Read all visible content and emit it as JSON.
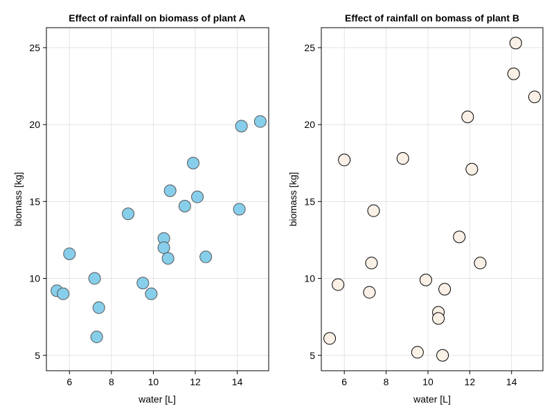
{
  "chart_data": [
    {
      "type": "scatter",
      "title": "Effect of rainfall on biomass of plant A",
      "xlabel": "water [L]",
      "ylabel": "biomass [kg]",
      "xlim": [
        4.9,
        15.5
      ],
      "ylim": [
        4.0,
        26.3
      ],
      "xticks": [
        6,
        8,
        10,
        12,
        14
      ],
      "yticks": [
        5,
        10,
        15,
        20,
        25
      ],
      "grid": true,
      "marker_color": "#87CEEB",
      "marker_edge": "#555555",
      "points": [
        {
          "x": 5.4,
          "y": 9.2
        },
        {
          "x": 5.7,
          "y": 9.0
        },
        {
          "x": 6.0,
          "y": 11.6
        },
        {
          "x": 7.2,
          "y": 10.0
        },
        {
          "x": 7.3,
          "y": 6.2
        },
        {
          "x": 7.4,
          "y": 8.1
        },
        {
          "x": 8.8,
          "y": 14.2
        },
        {
          "x": 9.5,
          "y": 9.7
        },
        {
          "x": 9.9,
          "y": 9.0
        },
        {
          "x": 10.5,
          "y": 12.6
        },
        {
          "x": 10.5,
          "y": 12.0
        },
        {
          "x": 10.7,
          "y": 11.3
        },
        {
          "x": 10.8,
          "y": 15.7
        },
        {
          "x": 11.5,
          "y": 14.7
        },
        {
          "x": 11.9,
          "y": 17.5
        },
        {
          "x": 12.1,
          "y": 15.3
        },
        {
          "x": 12.5,
          "y": 11.4
        },
        {
          "x": 14.1,
          "y": 14.5
        },
        {
          "x": 14.2,
          "y": 19.9
        },
        {
          "x": 15.1,
          "y": 20.2
        }
      ]
    },
    {
      "type": "scatter",
      "title": "Effect of rainfall on bomass of plant B",
      "xlabel": "water [L]",
      "ylabel": "biomass [kg]",
      "xlim": [
        4.9,
        15.5
      ],
      "ylim": [
        4.0,
        26.3
      ],
      "xticks": [
        6,
        8,
        10,
        12,
        14
      ],
      "yticks": [
        5,
        10,
        15,
        20,
        25
      ],
      "grid": true,
      "marker_color": "#FAF0E6",
      "marker_edge": "#000000",
      "points": [
        {
          "x": 5.3,
          "y": 6.1
        },
        {
          "x": 5.7,
          "y": 9.6
        },
        {
          "x": 6.0,
          "y": 17.7
        },
        {
          "x": 7.2,
          "y": 9.1
        },
        {
          "x": 7.3,
          "y": 11.0
        },
        {
          "x": 7.4,
          "y": 14.4
        },
        {
          "x": 8.8,
          "y": 17.8
        },
        {
          "x": 9.5,
          "y": 5.2
        },
        {
          "x": 9.9,
          "y": 9.9
        },
        {
          "x": 10.5,
          "y": 7.8
        },
        {
          "x": 10.5,
          "y": 7.4
        },
        {
          "x": 10.7,
          "y": 5.0
        },
        {
          "x": 10.8,
          "y": 9.3
        },
        {
          "x": 11.5,
          "y": 12.7
        },
        {
          "x": 11.9,
          "y": 20.5
        },
        {
          "x": 12.1,
          "y": 17.1
        },
        {
          "x": 12.5,
          "y": 11.0
        },
        {
          "x": 14.1,
          "y": 23.3
        },
        {
          "x": 14.2,
          "y": 25.3
        },
        {
          "x": 15.1,
          "y": 21.8
        }
      ]
    }
  ]
}
